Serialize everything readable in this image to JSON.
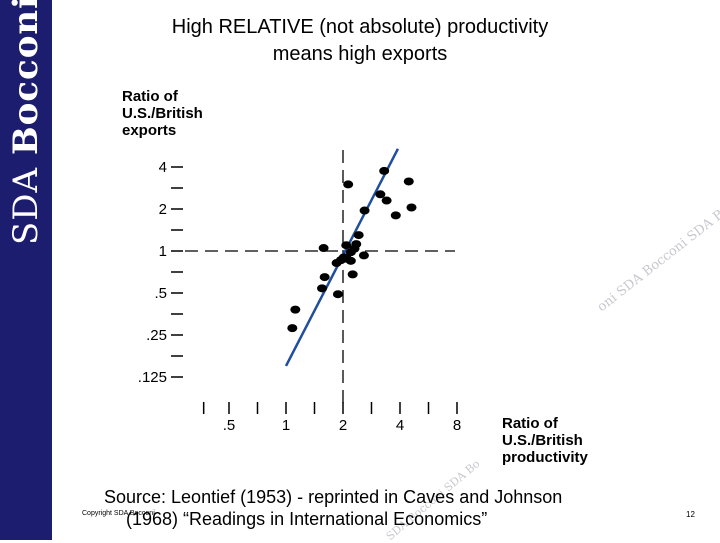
{
  "sidebar": {
    "brand_light": "SDA ",
    "brand_bold": "Bocconi"
  },
  "header": {
    "title_line1": "High RELATIVE (not absolute) productivity",
    "title_line2": "means high exports"
  },
  "footer": {
    "source_line1": "Source:  Leontief (1953) - reprinted in Caves and Johnson",
    "source_line2": "(1968)  “Readings in International Economics”",
    "copyright": "Copyright SDA Bocconi",
    "page_number": "12"
  },
  "watermark": {
    "text": "oni SDA Bocconi SDA Bocconi",
    "text2": "SDA Bocconi SDA Bo"
  },
  "colors": {
    "sidebar": "#1d1d70",
    "trend_line": "#1f4e9c",
    "points": "#000000"
  },
  "chart_data": {
    "type": "scatter",
    "title": "",
    "ylabel_lines": [
      "Ratio of",
      "U.S./British",
      "exports"
    ],
    "xlabel_lines": [
      "Ratio of",
      "U.S./British",
      "productivity"
    ],
    "x_scale": "log2",
    "y_scale": "log2",
    "x_ticks": [
      0.5,
      1,
      2,
      4,
      8
    ],
    "x_tick_labels": [
      ".5",
      "1",
      "2",
      "4",
      "8"
    ],
    "y_ticks": [
      0.125,
      0.25,
      0.5,
      1,
      2,
      4
    ],
    "y_tick_labels": [
      ".125",
      ".25",
      ".5",
      "1",
      "2",
      "4"
    ],
    "xlim": [
      0.35,
      8.5
    ],
    "ylim": [
      0.11,
      5.5
    ],
    "reference_lines": {
      "x": 2,
      "y": 1
    },
    "trend_line": {
      "x": [
        1.0,
        3.9
      ],
      "y": [
        0.15,
        5.4
      ]
    },
    "points": [
      {
        "x": 1.08,
        "y": 0.28
      },
      {
        "x": 1.12,
        "y": 0.38
      },
      {
        "x": 1.55,
        "y": 0.54
      },
      {
        "x": 1.6,
        "y": 0.65
      },
      {
        "x": 1.58,
        "y": 1.05
      },
      {
        "x": 1.88,
        "y": 0.49
      },
      {
        "x": 1.85,
        "y": 0.82
      },
      {
        "x": 1.95,
        "y": 0.86
      },
      {
        "x": 2.02,
        "y": 0.9
      },
      {
        "x": 2.1,
        "y": 0.88
      },
      {
        "x": 2.2,
        "y": 0.85
      },
      {
        "x": 2.25,
        "y": 0.68
      },
      {
        "x": 2.2,
        "y": 0.98
      },
      {
        "x": 2.3,
        "y": 1.04
      },
      {
        "x": 2.08,
        "y": 1.1
      },
      {
        "x": 2.35,
        "y": 1.12
      },
      {
        "x": 2.42,
        "y": 1.3
      },
      {
        "x": 2.58,
        "y": 0.93
      },
      {
        "x": 2.13,
        "y": 3.0
      },
      {
        "x": 2.6,
        "y": 1.95
      },
      {
        "x": 3.15,
        "y": 2.55
      },
      {
        "x": 3.4,
        "y": 2.3
      },
      {
        "x": 3.3,
        "y": 3.75
      },
      {
        "x": 3.8,
        "y": 1.8
      },
      {
        "x": 4.45,
        "y": 3.15
      },
      {
        "x": 4.6,
        "y": 2.05
      }
    ]
  }
}
